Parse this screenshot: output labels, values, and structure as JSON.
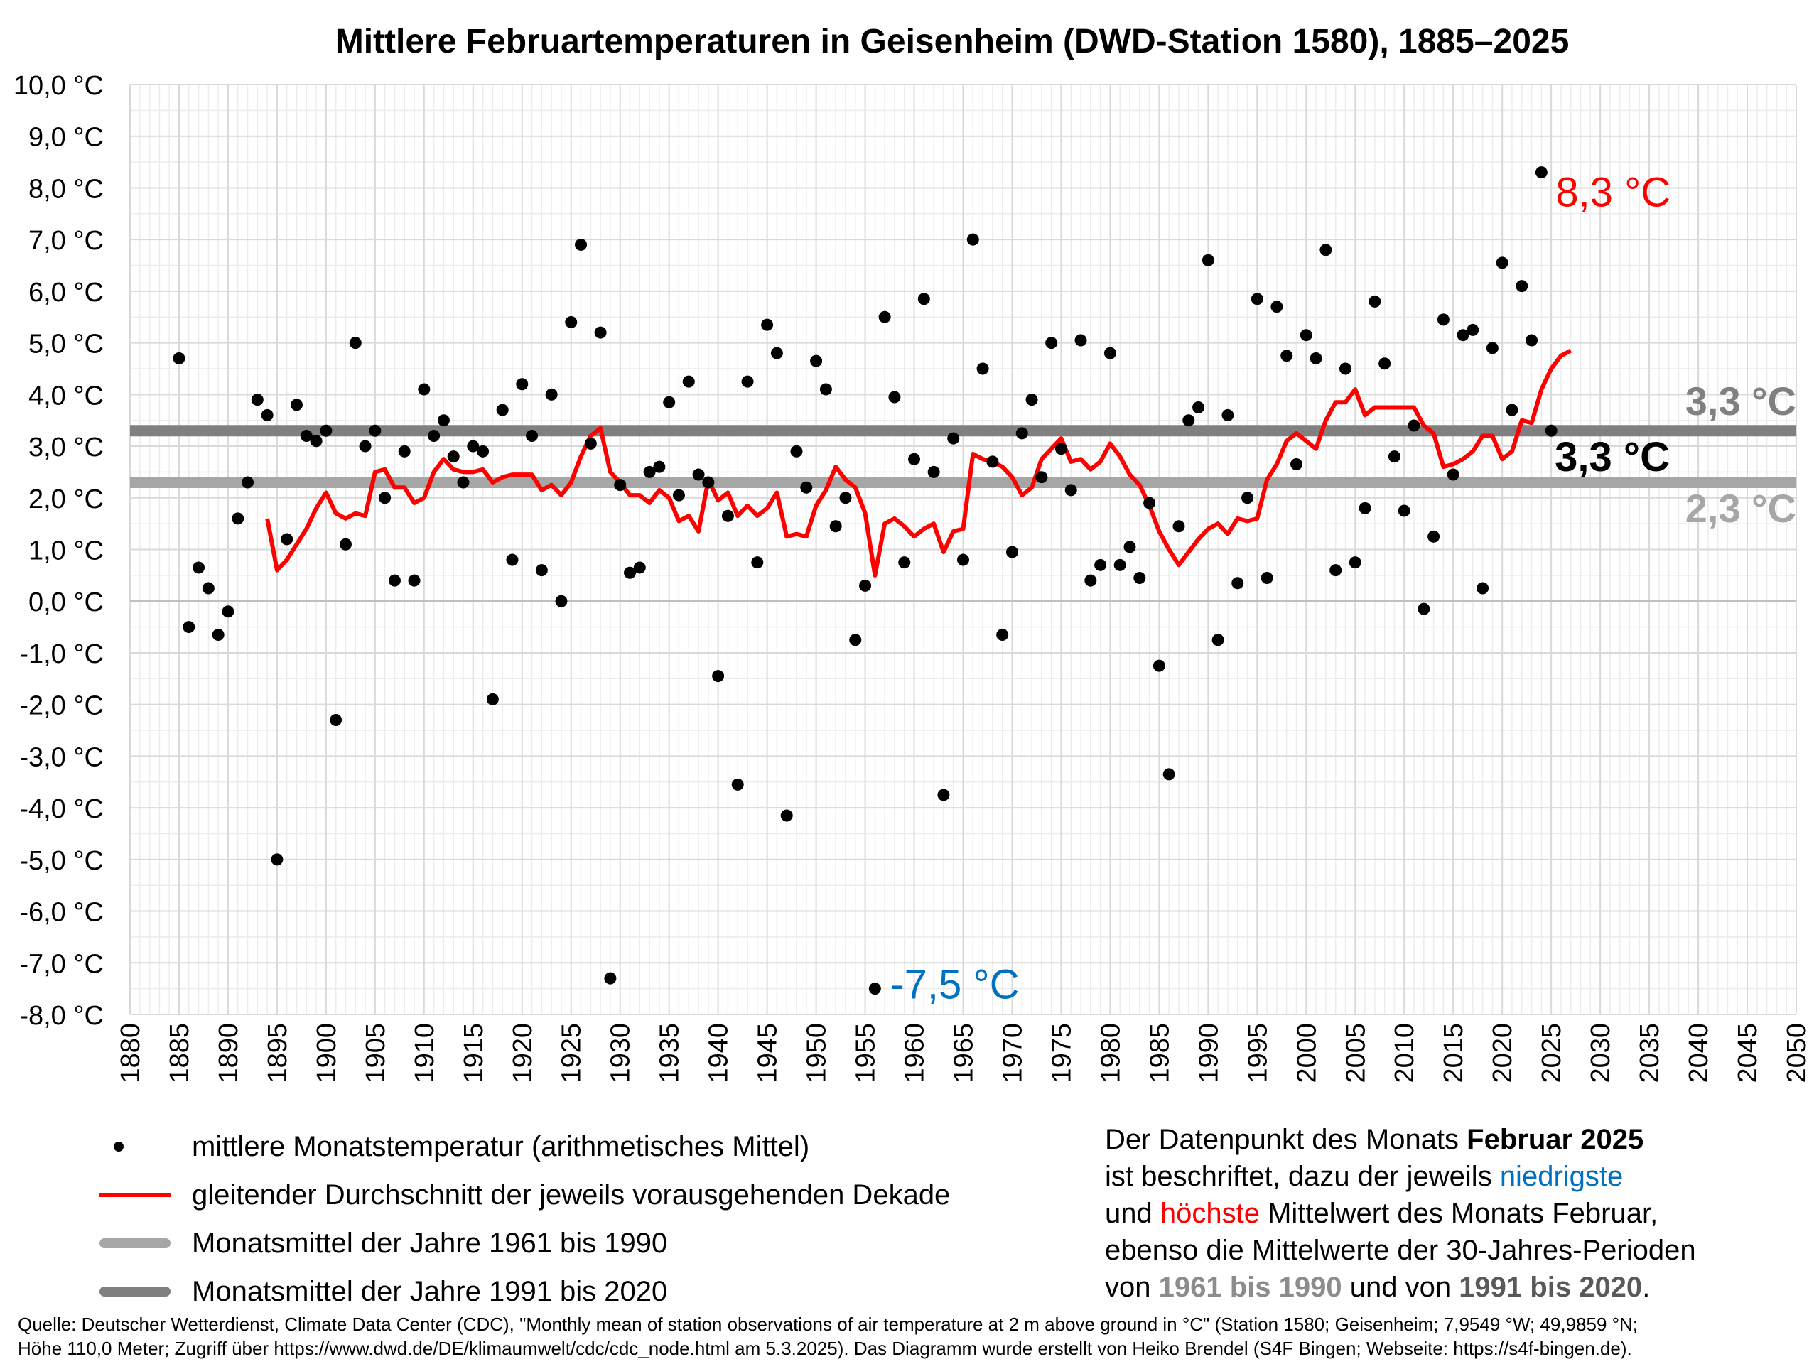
{
  "chart_data": {
    "type": "scatter",
    "title": "Mittlere Februartemperaturen in Geisenheim (DWD-Station 1580), 1885–2025",
    "xlim": [
      1880,
      2050
    ],
    "ylim": [
      -8,
      10
    ],
    "x_ticks": [
      "1880",
      "1885",
      "1890",
      "1895",
      "1900",
      "1905",
      "1910",
      "1915",
      "1920",
      "1925",
      "1930",
      "1935",
      "1940",
      "1945",
      "1950",
      "1955",
      "1960",
      "1965",
      "1970",
      "1975",
      "1980",
      "1985",
      "1990",
      "1995",
      "2000",
      "2005",
      "2010",
      "2015",
      "2020",
      "2025",
      "2030",
      "2035",
      "2040",
      "2045",
      "2050"
    ],
    "y_ticks": [
      "10,0 °C",
      "9,0 °C",
      "8,0 °C",
      "7,0 °C",
      "6,0 °C",
      "5,0 °C",
      "4,0 °C",
      "3,0 °C",
      "2,0 °C",
      "1,0 °C",
      "0,0 °C",
      "-1,0 °C",
      "-2,0 °C",
      "-3,0 °C",
      "-4,0 °C",
      "-5,0 °C",
      "-6,0 °C",
      "-7,0 °C",
      "-8,0 °C"
    ],
    "y_tick_values": [
      10,
      9,
      8,
      7,
      6,
      5,
      4,
      3,
      2,
      1,
      0,
      -1,
      -2,
      -3,
      -4,
      -5,
      -6,
      -7,
      -8
    ],
    "series": [
      {
        "name": "mittlere Monatstemperatur (arithmetisches Mittel)",
        "kind": "points",
        "color": "#000000",
        "start_year": 1885,
        "values": [
          4.7,
          -0.5,
          0.65,
          0.25,
          -0.65,
          -0.2,
          1.6,
          2.3,
          3.9,
          3.6,
          -5.0,
          1.2,
          3.8,
          3.2,
          3.1,
          3.3,
          -2.3,
          1.1,
          5.0,
          3.0,
          3.3,
          2.0,
          0.4,
          2.9,
          0.4,
          4.1,
          3.2,
          3.5,
          2.8,
          2.3,
          3.0,
          2.9,
          -1.9,
          3.7,
          0.8,
          4.2,
          3.2,
          0.6,
          4.0,
          0.0,
          5.4,
          6.9,
          3.05,
          5.2,
          -7.3,
          2.25,
          0.55,
          0.65,
          2.5,
          2.6,
          3.85,
          2.05,
          4.25,
          2.45,
          2.3,
          -1.45,
          1.65,
          -3.55,
          4.25,
          0.75,
          5.35,
          4.8,
          -4.15,
          2.9,
          2.2,
          4.65,
          4.1,
          1.45,
          2.0,
          -0.75,
          0.3,
          -7.5,
          5.5,
          3.95,
          0.75,
          2.75,
          5.85,
          2.5,
          -3.75,
          3.15,
          0.8,
          7.0,
          4.5,
          2.7,
          -0.65,
          0.95,
          3.25,
          3.9,
          2.4,
          5.0,
          2.95,
          2.15,
          5.05,
          0.4,
          0.7,
          4.8,
          0.7,
          1.05,
          0.45,
          1.9,
          -1.25,
          -3.35,
          1.45,
          3.5,
          3.75,
          6.6,
          -0.75,
          3.6,
          0.35,
          2.0,
          5.85,
          0.45,
          5.7,
          4.75,
          2.65,
          5.15,
          4.7,
          6.8,
          0.6,
          4.5,
          0.75,
          1.8,
          5.8,
          4.6,
          2.8,
          1.75,
          3.4,
          -0.15,
          1.25,
          5.45,
          2.45,
          5.15,
          5.25,
          0.25,
          4.9,
          6.55,
          3.7,
          6.1,
          5.05,
          8.3,
          3.3
        ]
      },
      {
        "name": "gleitender Durchschnitt der jeweils vorausgehenden Dekade",
        "kind": "line",
        "color": "#ff0000",
        "start_year": 1894,
        "values": [
          1.6,
          0.6,
          0.8,
          1.1,
          1.4,
          1.8,
          2.1,
          1.7,
          1.6,
          1.7,
          1.65,
          2.5,
          2.55,
          2.2,
          2.2,
          1.9,
          2.0,
          2.5,
          2.75,
          2.55,
          2.5,
          2.5,
          2.55,
          2.3,
          2.4,
          2.45,
          2.45,
          2.45,
          2.15,
          2.25,
          2.05,
          2.3,
          2.8,
          3.2,
          3.35,
          2.5,
          2.3,
          2.05,
          2.05,
          1.9,
          2.15,
          2.0,
          1.55,
          1.65,
          1.35,
          2.35,
          1.95,
          2.1,
          1.65,
          1.85,
          1.65,
          1.8,
          2.1,
          1.25,
          1.3,
          1.25,
          1.85,
          2.15,
          2.6,
          2.35,
          2.2,
          1.7,
          0.5,
          1.5,
          1.6,
          1.45,
          1.25,
          1.4,
          1.5,
          0.95,
          1.35,
          1.4,
          2.85,
          2.75,
          2.7,
          2.6,
          2.4,
          2.05,
          2.2,
          2.75,
          2.95,
          3.15,
          2.7,
          2.75,
          2.55,
          2.7,
          3.05,
          2.8,
          2.45,
          2.25,
          1.85,
          1.35,
          1.0,
          0.7,
          0.95,
          1.2,
          1.4,
          1.5,
          1.3,
          1.6,
          1.55,
          1.6,
          2.35,
          2.65,
          3.1,
          3.25,
          3.1,
          2.95,
          3.5,
          3.85,
          3.85,
          4.1,
          3.6,
          3.75,
          3.75,
          3.75,
          3.75,
          3.75,
          3.4,
          3.25,
          2.6,
          2.65,
          2.75,
          2.9,
          3.2,
          3.2,
          2.75,
          2.9,
          3.5,
          3.45,
          4.1,
          4.5,
          4.75,
          4.85
        ]
      }
    ],
    "reference_lines": [
      {
        "name": "Monatsmittel der Jahre 1961 bis 1990",
        "value": 2.3,
        "color": "#a6a6a6",
        "label": "2,3 °C"
      },
      {
        "name": "Monatsmittel der Jahre 1991 bis 2020",
        "value": 3.3,
        "color": "#808080",
        "label": "3,3 °C"
      }
    ],
    "annotations": {
      "max": {
        "text": "8,3 °C",
        "year": 2024,
        "value": 8.3,
        "color": "#ff0000"
      },
      "min": {
        "text": "-7,5 °C",
        "year": 1956,
        "value": -7.5,
        "color": "#0070c0"
      },
      "current": {
        "text": "3,3 °C",
        "year": 2025,
        "value": 3.3,
        "color": "#000000"
      }
    },
    "grid": true
  },
  "legend": {
    "items": [
      "mittlere Monatstemperatur (arithmetisches Mittel)",
      "gleitender Durchschnitt der jeweils vorausgehenden Dekade",
      "Monatsmittel der Jahre 1961 bis 1990",
      "Monatsmittel der Jahre 1991 bis 2020"
    ]
  },
  "note": {
    "line1_pre": "Der Datenpunkt des Monats ",
    "line1_bold": "Februar 2025",
    "line2_pre": "ist beschriftet, dazu der jeweils ",
    "line2_blue": "niedrigste",
    "line3_pre": "und ",
    "line3_red": "höchste",
    "line3_post": " Mittelwert des Monats Februar,",
    "line4": "ebenso die Mittelwerte der 30-Jahres-Perioden",
    "line5_pre": "von ",
    "line5_g1": "1961 bis 1990",
    "line5_mid": " und von ",
    "line5_g2": "1991 bis 2020",
    "line5_post": "."
  },
  "source": {
    "line1": "Quelle: Deutscher Wetterdienst, Climate Data Center (CDC), \"Monthly mean of station observations of air temperature at 2 m above ground in °C\" (Station 1580; Geisenheim; 7,9549 °W; 49,9859 °N;",
    "line2": "Höhe 110,0 Meter; Zugriff über https://www.dwd.de/DE/klimaumwelt/cdc/cdc_node.html am 5.3.2025). Das Diagramm wurde erstellt von Heiko Brendel (S4F Bingen; Webseite: https://s4f-bingen.de)."
  }
}
